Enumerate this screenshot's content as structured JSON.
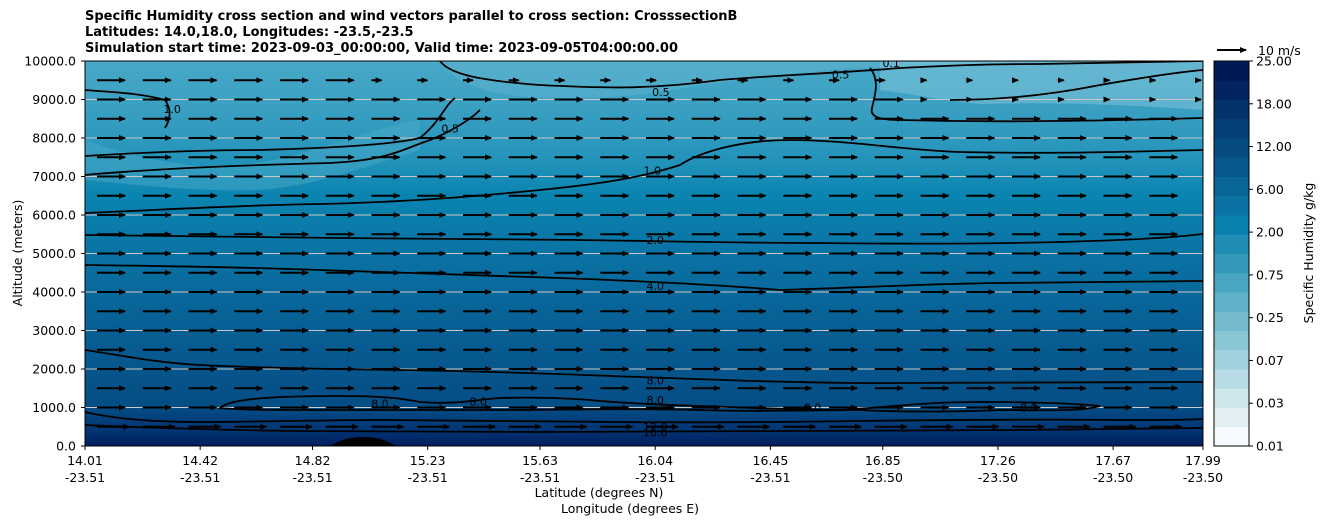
{
  "chart_data": {
    "type": "heatmap",
    "title_lines": [
      "Specific Humidity cross section and wind vectors parallel to cross section: CrosssectionB",
      "Latitudes: 14.0,18.0, Longitudes: -23.5,-23.5",
      "Simulation start time: 2023-09-03_00:00:00, Valid time: 2023-09-05T04:00:00.00"
    ],
    "ylabel": "Altitude (meters)",
    "xlabel_lines": [
      "Latitude (degrees N)",
      "Longitude (degrees E)"
    ],
    "ylim": [
      0,
      10000
    ],
    "y_ticks": [
      "0.0",
      "1000.0",
      "2000.0",
      "3000.0",
      "4000.0",
      "5000.0",
      "6000.0",
      "7000.0",
      "8000.0",
      "9000.0",
      "10000.0"
    ],
    "x_ticks": [
      {
        "lat": "14.01",
        "lon": "-23.51"
      },
      {
        "lat": "14.42",
        "lon": "-23.51"
      },
      {
        "lat": "14.82",
        "lon": "-23.51"
      },
      {
        "lat": "15.23",
        "lon": "-23.51"
      },
      {
        "lat": "15.63",
        "lon": "-23.51"
      },
      {
        "lat": "16.04",
        "lon": "-23.51"
      },
      {
        "lat": "16.45",
        "lon": "-23.51"
      },
      {
        "lat": "16.85",
        "lon": "-23.50"
      },
      {
        "lat": "17.26",
        "lon": "-23.50"
      },
      {
        "lat": "17.67",
        "lon": "-23.50"
      },
      {
        "lat": "17.99",
        "lon": "-23.50"
      }
    ],
    "grid": "horizontal",
    "colorbar": {
      "label": "Specific Humidity g/kg",
      "tick_labels": [
        "0.01",
        "0.03",
        "0.07",
        "0.25",
        "0.75",
        "2.00",
        "6.00",
        "12.00",
        "18.00",
        "25.00"
      ],
      "colors": [
        "#f7fbff",
        "#e2f0f3",
        "#cde6ec",
        "#b7dce5",
        "#a1d1de",
        "#8bc6d7",
        "#75bbd0",
        "#5fb0c9",
        "#4aa5c2",
        "#3399bb",
        "#1f8db4",
        "#0a81ad",
        "#0a73a3",
        "#0a6698",
        "#08598d",
        "#064c82",
        "#043f77",
        "#03326c",
        "#022561",
        "#001856"
      ]
    },
    "quiver_key": {
      "label": "10 m/s",
      "speed": 10
    },
    "contour_labels": [
      {
        "text": "0.5",
        "lat": 16.06,
        "alt": 9200
      },
      {
        "text": "0.5",
        "lat": 16.7,
        "alt": 9650
      },
      {
        "text": "0.5",
        "lat": 15.31,
        "alt": 8250
      },
      {
        "text": "0.1",
        "lat": 16.88,
        "alt": 9950
      },
      {
        "text": "1.0",
        "lat": 14.32,
        "alt": 8750
      },
      {
        "text": "1.0",
        "lat": 16.03,
        "alt": 7150
      },
      {
        "text": "2.0",
        "lat": 16.04,
        "alt": 5350
      },
      {
        "text": "4.0",
        "lat": 16.04,
        "alt": 4150
      },
      {
        "text": "8.0",
        "lat": 16.04,
        "alt": 1700
      },
      {
        "text": "8.0",
        "lat": 16.04,
        "alt": 1200
      },
      {
        "text": "8.0",
        "lat": 15.06,
        "alt": 1100
      },
      {
        "text": "8.0",
        "lat": 15.41,
        "alt": 1150
      },
      {
        "text": "8.0",
        "lat": 16.6,
        "alt": 1000
      },
      {
        "text": "8.0",
        "lat": 17.37,
        "alt": 1000
      },
      {
        "text": "12.0",
        "lat": 16.04,
        "alt": 500
      },
      {
        "text": "16.0",
        "lat": 16.04,
        "alt": 350
      }
    ]
  }
}
